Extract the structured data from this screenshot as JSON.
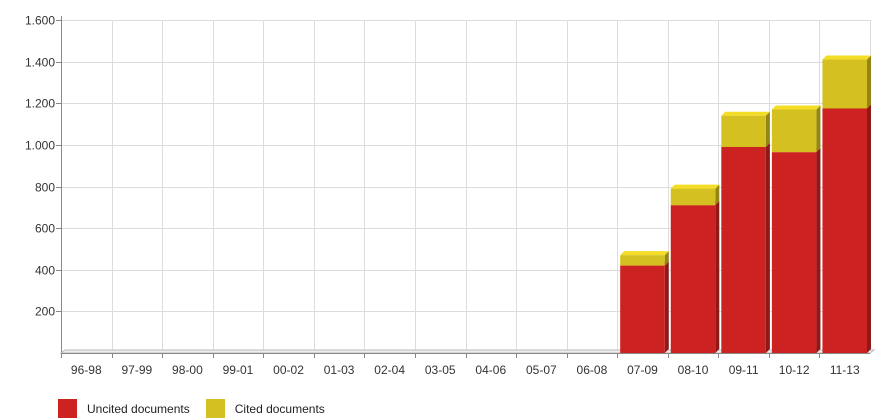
{
  "chart_data": {
    "type": "bar",
    "stacked": true,
    "categories": [
      "96-98",
      "97-99",
      "98-00",
      "99-01",
      "00-02",
      "01-03",
      "02-04",
      "03-05",
      "04-06",
      "05-07",
      "06-08",
      "07-09",
      "08-10",
      "09-11",
      "10-12",
      "11-13"
    ],
    "series": [
      {
        "name": "Uncited documents",
        "color": "#cc2222",
        "values": [
          0,
          0,
          0,
          0,
          0,
          0,
          0,
          0,
          0,
          0,
          0,
          420,
          710,
          990,
          965,
          1175
        ]
      },
      {
        "name": "Cited documents",
        "color": "#d4c020",
        "values": [
          0,
          0,
          0,
          0,
          0,
          0,
          0,
          0,
          0,
          0,
          0,
          50,
          80,
          150,
          205,
          235
        ]
      }
    ],
    "ylim": [
      0,
      1600
    ],
    "yticks": [
      {
        "value": 200,
        "label": "200"
      },
      {
        "value": 400,
        "label": "400"
      },
      {
        "value": 600,
        "label": "600"
      },
      {
        "value": 800,
        "label": "800"
      },
      {
        "value": 1000,
        "label": "1.000"
      },
      {
        "value": 1200,
        "label": "1.200"
      },
      {
        "value": 1400,
        "label": "1.400"
      },
      {
        "value": 1600,
        "label": "1.600"
      }
    ],
    "grid": true,
    "legend_position": "bottom-left"
  }
}
